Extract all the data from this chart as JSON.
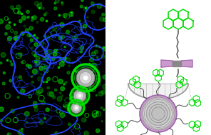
{
  "fig_width": 2.96,
  "fig_height": 1.89,
  "dpi": 100,
  "colors": {
    "blue": "#2244ff",
    "green": "#00dd00",
    "green_bright": "#00ff00",
    "purple": "#cc99cc",
    "purple_edge": "#9966aa",
    "gray": "#999999",
    "gray_light": "#cccccc",
    "gray_dark": "#555555",
    "dark_gray": "#444444",
    "white": "#ffffff",
    "black": "#000000",
    "cell_bg": "#001800"
  }
}
